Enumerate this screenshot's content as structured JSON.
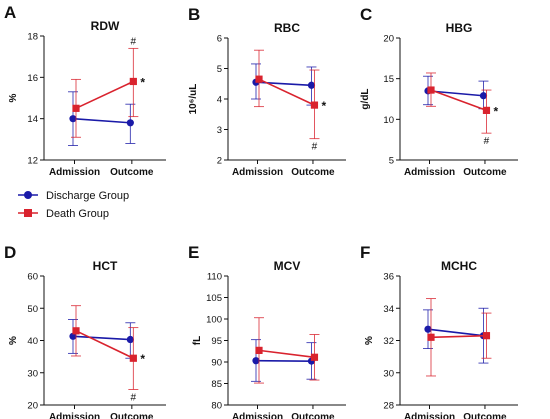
{
  "legend": {
    "placement": "below-top-left-panel",
    "items": [
      {
        "label": "Discharge Group",
        "color": "#1a1aa8",
        "marker": "circle"
      },
      {
        "label": "Death Group",
        "color": "#d9232e",
        "marker": "square"
      }
    ]
  },
  "colors": {
    "discharge": "#1a1aa8",
    "death": "#d9232e",
    "axis": "#111111"
  },
  "chart_data": [
    {
      "type": "line",
      "panel_letter": "A",
      "title": "RDW",
      "ylabel": "%",
      "xlabel": "",
      "categories": [
        "Admission",
        "Outcome"
      ],
      "ylim": [
        12,
        18
      ],
      "yticks": [
        "12",
        "14",
        "16",
        "18"
      ],
      "grid": false,
      "series": [
        {
          "name": "Discharge Group",
          "values": [
            14.0,
            13.8
          ],
          "err_low": [
            12.7,
            12.8
          ],
          "err_high": [
            15.3,
            14.7
          ]
        },
        {
          "name": "Death Group",
          "values": [
            14.5,
            15.8
          ],
          "err_low": [
            13.1,
            14.1
          ],
          "err_high": [
            15.9,
            17.4
          ]
        }
      ],
      "annotations": {
        "star": "*",
        "hash": "#",
        "hash_position": "above"
      }
    },
    {
      "type": "line",
      "panel_letter": "B",
      "title": "RBC",
      "ylabel": "10⁶/uL",
      "xlabel": "",
      "categories": [
        "Admission",
        "Outcome"
      ],
      "ylim": [
        2,
        6
      ],
      "yticks": [
        "2",
        "3",
        "4",
        "5",
        "6"
      ],
      "grid": false,
      "series": [
        {
          "name": "Discharge Group",
          "values": [
            4.55,
            4.45
          ],
          "err_low": [
            4.0,
            3.8
          ],
          "err_high": [
            5.15,
            5.05
          ]
        },
        {
          "name": "Death Group",
          "values": [
            4.65,
            3.8
          ],
          "err_low": [
            3.75,
            2.7
          ],
          "err_high": [
            5.6,
            4.95
          ]
        }
      ],
      "annotations": {
        "star": "*",
        "hash": "#",
        "hash_position": "below"
      }
    },
    {
      "type": "line",
      "panel_letter": "C",
      "title": "HBG",
      "ylabel": "g/dL",
      "xlabel": "",
      "categories": [
        "Admission",
        "Outcome"
      ],
      "ylim": [
        5,
        20
      ],
      "yticks": [
        "5",
        "10",
        "15",
        "20"
      ],
      "grid": false,
      "series": [
        {
          "name": "Discharge Group",
          "values": [
            13.5,
            12.9
          ],
          "err_low": [
            11.8,
            11.3
          ],
          "err_high": [
            15.3,
            14.7
          ]
        },
        {
          "name": "Death Group",
          "values": [
            13.6,
            11.1
          ],
          "err_low": [
            11.6,
            8.3
          ],
          "err_high": [
            15.7,
            13.6
          ]
        }
      ],
      "annotations": {
        "star": "*",
        "hash": "#",
        "hash_position": "below"
      }
    },
    {
      "type": "line",
      "panel_letter": "D",
      "title": "HCT",
      "ylabel": "%",
      "xlabel": "",
      "categories": [
        "Admission",
        "Outcome"
      ],
      "ylim": [
        20,
        60
      ],
      "yticks": [
        "20",
        "30",
        "40",
        "50",
        "60"
      ],
      "grid": false,
      "series": [
        {
          "name": "Discharge Group",
          "values": [
            41.3,
            40.3
          ],
          "err_low": [
            36.0,
            34.5
          ],
          "err_high": [
            46.5,
            45.5
          ]
        },
        {
          "name": "Death Group",
          "values": [
            43.0,
            34.5
          ],
          "err_low": [
            35.2,
            24.8
          ],
          "err_high": [
            50.8,
            44.0
          ]
        }
      ],
      "annotations": {
        "star": "*",
        "hash": "#",
        "hash_position": "below"
      }
    },
    {
      "type": "line",
      "panel_letter": "E",
      "title": "MCV",
      "ylabel": "fL",
      "xlabel": "",
      "categories": [
        "Admission",
        "Outcome"
      ],
      "ylim": [
        80,
        110
      ],
      "yticks": [
        "80",
        "85",
        "90",
        "95",
        "100",
        "105",
        "110"
      ],
      "grid": false,
      "series": [
        {
          "name": "Discharge Group",
          "values": [
            90.3,
            90.2
          ],
          "err_low": [
            85.5,
            86.0
          ],
          "err_high": [
            95.2,
            94.5
          ]
        },
        {
          "name": "Death Group",
          "values": [
            92.7,
            91.1
          ],
          "err_low": [
            85.1,
            85.8
          ],
          "err_high": [
            100.3,
            96.4
          ]
        }
      ],
      "annotations": {}
    },
    {
      "type": "line",
      "panel_letter": "F",
      "title": "MCHC",
      "ylabel": "%",
      "xlabel": "",
      "categories": [
        "Admission",
        "Outcome"
      ],
      "ylim": [
        28,
        36
      ],
      "yticks": [
        "28",
        "30",
        "32",
        "34",
        "36"
      ],
      "grid": false,
      "series": [
        {
          "name": "Discharge Group",
          "values": [
            32.7,
            32.3
          ],
          "err_low": [
            31.5,
            30.6
          ],
          "err_high": [
            33.9,
            34.0
          ]
        },
        {
          "name": "Death Group",
          "values": [
            32.2,
            32.3
          ],
          "err_low": [
            29.8,
            30.9
          ],
          "err_high": [
            34.6,
            33.7
          ]
        }
      ],
      "annotations": {}
    }
  ]
}
